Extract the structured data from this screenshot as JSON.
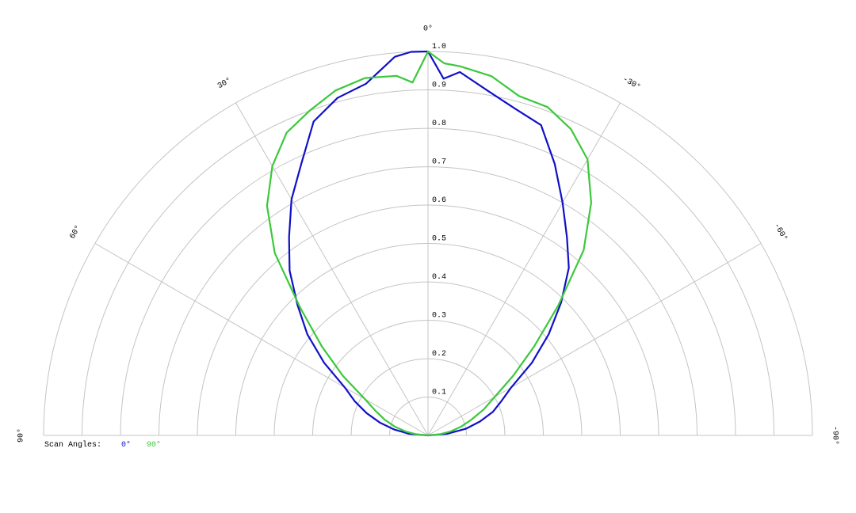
{
  "chart_data": {
    "type": "polar",
    "legend_title": "Scan Angles:",
    "x": [
      -90,
      -85,
      -80,
      -75,
      -70,
      -65,
      -60,
      -55,
      -50,
      -45,
      -40,
      -35,
      -30,
      -25,
      -20,
      -15,
      -10,
      -5,
      -2.5,
      0,
      2.5,
      5,
      10,
      15,
      20,
      25,
      30,
      35,
      40,
      45,
      50,
      55,
      60,
      65,
      70,
      75,
      80,
      85,
      90
    ],
    "series": [
      {
        "name": "0°",
        "color": "#1010c8",
        "values": [
          0,
          0.05,
          0.1,
          0.14,
          0.18,
          0.21,
          0.25,
          0.33,
          0.41,
          0.49,
          0.57,
          0.63,
          0.7,
          0.78,
          0.86,
          0.88,
          0.91,
          0.95,
          0.93,
          1.0,
          1.0,
          0.99,
          0.93,
          0.91,
          0.87,
          0.78,
          0.71,
          0.63,
          0.56,
          0.48,
          0.41,
          0.33,
          0.25,
          0.21,
          0.17,
          0.13,
          0.09,
          0.05,
          0
        ]
      },
      {
        "name": "90°",
        "color": "#3cc83c",
        "values": [
          0,
          0.03,
          0.06,
          0.09,
          0.12,
          0.16,
          0.2,
          0.27,
          0.36,
          0.48,
          0.63,
          0.74,
          0.83,
          0.88,
          0.91,
          0.915,
          0.95,
          0.965,
          0.97,
          1.0,
          0.92,
          0.94,
          0.945,
          0.93,
          0.9,
          0.87,
          0.81,
          0.73,
          0.62,
          0.47,
          0.36,
          0.27,
          0.19,
          0.15,
          0.12,
          0.09,
          0.06,
          0.03,
          0
        ]
      }
    ],
    "xlim": [
      -90,
      90
    ],
    "xticks": [
      {
        "value": 90,
        "label": "90°"
      },
      {
        "value": 60,
        "label": "60°"
      },
      {
        "value": 30,
        "label": "30°"
      },
      {
        "value": 0,
        "label": "0°"
      },
      {
        "value": -30,
        "label": "-30°"
      },
      {
        "value": -60,
        "label": "-60°"
      },
      {
        "value": -90,
        "label": "-90°"
      }
    ],
    "rlim": [
      0,
      1
    ],
    "rticks": [
      0.1,
      0.2,
      0.3,
      0.4,
      0.5,
      0.6,
      0.7,
      0.8,
      0.9,
      {
        "value": 1,
        "label": "1.0"
      }
    ],
    "grid": true
  }
}
